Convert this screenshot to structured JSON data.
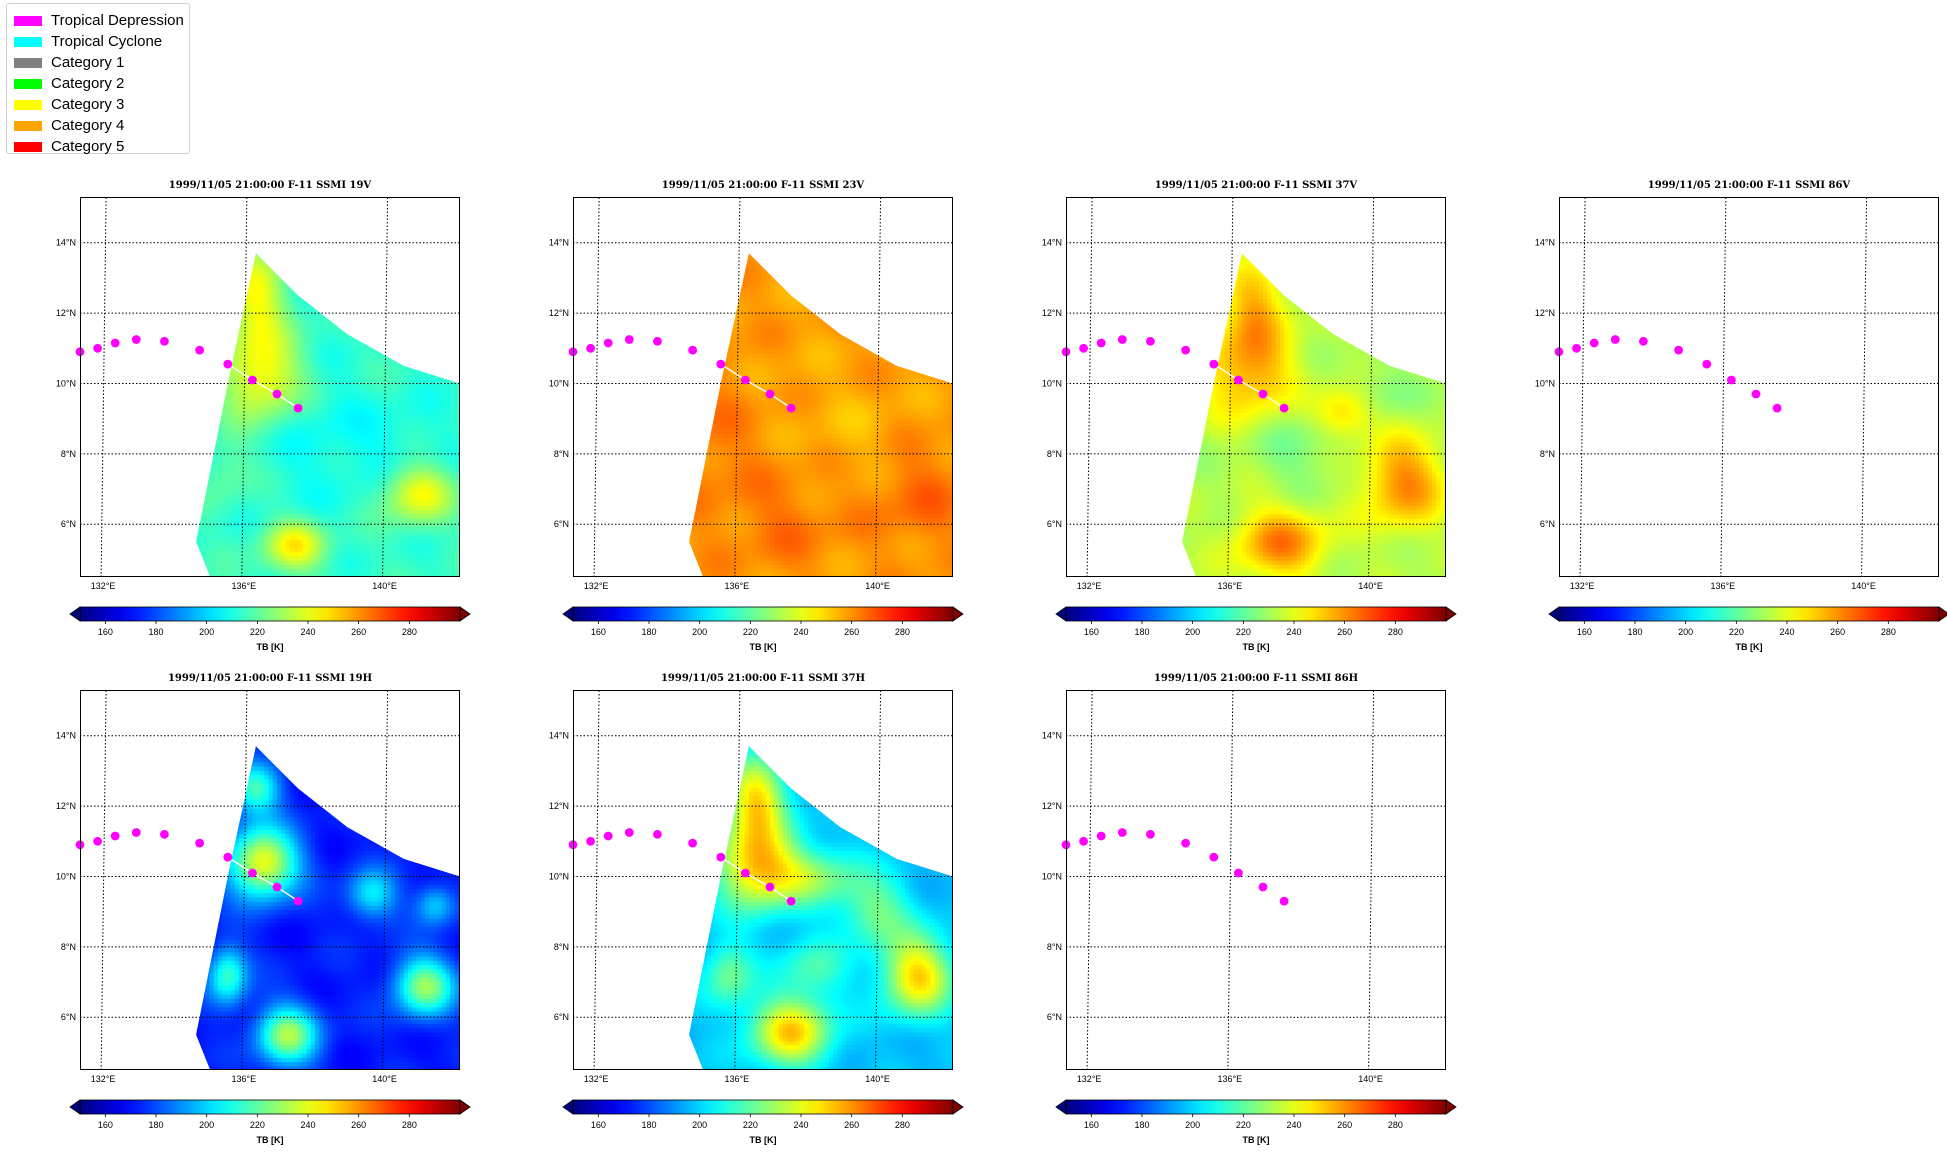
{
  "legend": {
    "items": [
      {
        "label": "Tropical Depression",
        "color": "#ff00ff"
      },
      {
        "label": "Tropical Cyclone",
        "color": "#00ffff"
      },
      {
        "label": "Category 1",
        "color": "#808080"
      },
      {
        "label": "Category 2",
        "color": "#00ff00"
      },
      {
        "label": "Category 3",
        "color": "#ffff00"
      },
      {
        "label": "Category 4",
        "color": "#ffa500"
      },
      {
        "label": "Category 5",
        "color": "#ff0000"
      }
    ]
  },
  "map_extent": {
    "lon": [
      131.4,
      142.2
    ],
    "lat": [
      4.5,
      15.3
    ]
  },
  "lat_ticks": [
    6,
    8,
    10,
    12,
    14
  ],
  "lat_tick_labels": [
    "6°N",
    "8°N",
    "10°N",
    "12°N",
    "14°N"
  ],
  "lon_ticks": [
    132,
    136,
    140
  ],
  "lon_tick_labels": [
    "132°E",
    "136°E",
    "140°E"
  ],
  "swath_outline": [
    [
      136.4,
      13.7
    ],
    [
      137.6,
      12.5
    ],
    [
      139.0,
      11.4
    ],
    [
      140.6,
      10.5
    ],
    [
      142.2,
      10.0
    ],
    [
      142.2,
      4.5
    ],
    [
      135.1,
      4.5
    ],
    [
      134.7,
      5.5
    ],
    [
      135.6,
      10.0
    ]
  ],
  "track": {
    "color": "#ff00ff",
    "points": [
      [
        131.4,
        10.9
      ],
      [
        131.9,
        11.0
      ],
      [
        132.4,
        11.15
      ],
      [
        133.0,
        11.25
      ],
      [
        133.8,
        11.2
      ],
      [
        134.8,
        10.95
      ],
      [
        135.6,
        10.55
      ],
      [
        136.3,
        10.1
      ],
      [
        137.0,
        9.7
      ],
      [
        137.6,
        9.3
      ]
    ],
    "line_points": [
      [
        135.6,
        10.55
      ],
      [
        136.3,
        10.1
      ],
      [
        137.0,
        9.7
      ],
      [
        137.6,
        9.3
      ]
    ]
  },
  "colorbar": {
    "colormap": "jet",
    "range": [
      150,
      300
    ],
    "ticks": [
      160,
      180,
      200,
      220,
      240,
      260,
      280
    ],
    "tick_labels": [
      "160",
      "180",
      "200",
      "220",
      "240",
      "260",
      "280"
    ],
    "label": "TB [K]"
  },
  "panels": [
    {
      "title": "1999/11/05 21:00:00  F-11 SSMI 19V",
      "channel": "19V",
      "has_data": true,
      "base_tb": 214,
      "blobs": [
        [
          136.6,
          10.2,
          245,
          0.8,
          0.9
        ],
        [
          136.4,
          12.5,
          242,
          0.6,
          1.0
        ],
        [
          137.5,
          5.4,
          245,
          0.6,
          0.5
        ],
        [
          141.0,
          6.9,
          245,
          0.7,
          0.6
        ],
        [
          135.6,
          7.6,
          222,
          0.5,
          0.7
        ],
        [
          138.0,
          8.5,
          208,
          1.2,
          1.5
        ],
        [
          140.5,
          8.0,
          208,
          1.0,
          1.0
        ]
      ]
    },
    {
      "title": "1999/11/05 21:00:00  F-11 SSMI 23V",
      "channel": "23V",
      "has_data": true,
      "base_tb": 258,
      "blobs": [
        [
          135.3,
          8.5,
          263,
          1.2,
          1.8
        ],
        [
          137.5,
          6.0,
          264,
          1.0,
          0.9
        ],
        [
          141.2,
          6.8,
          266,
          1.0,
          1.0
        ],
        [
          137.5,
          10.0,
          256,
          1.0,
          1.0
        ],
        [
          139.5,
          8.5,
          254,
          1.0,
          1.0
        ]
      ]
    },
    {
      "title": "1999/11/05 21:00:00  F-11 SSMI 37V",
      "channel": "37V",
      "has_data": true,
      "base_tb": 232,
      "blobs": [
        [
          136.6,
          10.4,
          258,
          0.9,
          1.0
        ],
        [
          136.8,
          12.3,
          252,
          0.6,
          0.9
        ],
        [
          137.5,
          5.5,
          262,
          0.9,
          0.7
        ],
        [
          141.0,
          7.2,
          262,
          0.8,
          0.9
        ],
        [
          139.3,
          9.2,
          254,
          0.6,
          0.5
        ],
        [
          138.0,
          8.2,
          224,
          0.9,
          0.9
        ],
        [
          140.2,
          9.7,
          224,
          0.7,
          0.6
        ]
      ]
    },
    {
      "title": "1999/11/05 21:00:00  F-11 SSMI 86V",
      "channel": "86V",
      "has_data": false,
      "base_tb": 0,
      "blobs": []
    },
    {
      "title": "1999/11/05 21:00:00  F-11 SSMI 19H",
      "channel": "19H",
      "has_data": true,
      "base_tb": 172,
      "blobs": [
        [
          136.6,
          10.4,
          244,
          0.7,
          0.7
        ],
        [
          136.4,
          12.5,
          215,
          0.5,
          0.5
        ],
        [
          137.3,
          5.5,
          230,
          0.6,
          0.6
        ],
        [
          141.2,
          6.9,
          228,
          0.6,
          0.6
        ],
        [
          135.6,
          7.2,
          215,
          0.4,
          0.6
        ],
        [
          139.7,
          9.5,
          205,
          0.5,
          0.5
        ],
        [
          141.5,
          9.2,
          200,
          0.4,
          0.4
        ]
      ]
    },
    {
      "title": "1999/11/05 21:00:00  F-11 SSMI 37H",
      "channel": "37H",
      "has_data": true,
      "base_tb": 196,
      "blobs": [
        [
          136.6,
          10.4,
          250,
          0.8,
          0.9
        ],
        [
          136.6,
          12.3,
          244,
          0.6,
          0.8
        ],
        [
          137.6,
          5.6,
          250,
          0.8,
          0.7
        ],
        [
          141.2,
          7.2,
          250,
          0.7,
          0.8
        ],
        [
          138.2,
          10.0,
          225,
          1.0,
          0.6
        ],
        [
          140.0,
          9.0,
          222,
          0.7,
          0.7
        ],
        [
          135.8,
          7.2,
          222,
          0.5,
          0.7
        ],
        [
          138.2,
          7.4,
          216,
          0.7,
          0.6
        ]
      ]
    },
    {
      "title": "1999/11/05 21:00:00  F-11 SSMI 86H",
      "channel": "86H",
      "has_data": false,
      "base_tb": 0,
      "blobs": []
    }
  ]
}
